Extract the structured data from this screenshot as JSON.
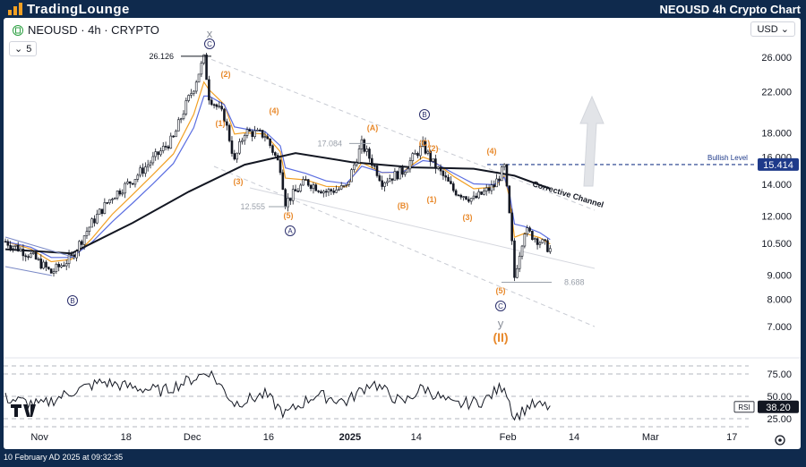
{
  "header": {
    "brand": "TradingLounge",
    "title": "NEOUSD 4h Crypto Chart"
  },
  "toolbar": {
    "symbol": "NEOUSD · 4h · CRYPTO",
    "interval_value": "5",
    "currency": "USD"
  },
  "footer": {
    "timestamp": "10 February AD 2025 at 09:32:35"
  },
  "colors": {
    "background": "#0f2a4d",
    "candle": "#131722",
    "sma_long": "#131722",
    "ema_blue": "#5b6ee1",
    "ema_orange": "#f2a024",
    "wave_orange": "#e8892b",
    "wave_navy": "#2a2e6b",
    "bullish_level": "#1e3a8a",
    "rsi": "#131722"
  },
  "chart_data": [
    {
      "type": "line",
      "title": "NEOUSD · 4h · CRYPTO",
      "log_scale": true,
      "grid": false,
      "x_ticks": [
        "Nov",
        "18",
        "Dec",
        "16",
        "2025",
        "14",
        "Feb",
        "14",
        "Mar",
        "17"
      ],
      "y_ticks": [
        26,
        22,
        18,
        16,
        14,
        12,
        10.5,
        9,
        8,
        7
      ],
      "y_tick_labels": [
        "26.000",
        "22.000",
        "18.000",
        "16.000",
        "14.000",
        "12.000",
        "10.500",
        "9.000",
        "8.000",
        "7.000"
      ],
      "ylim": [
        6.2,
        29
      ],
      "series": [
        {
          "name": "",
          "x": [
            "Oct 26",
            "Oct 31",
            "Nov 4",
            "Nov 8",
            "Nov 12",
            "Nov 16",
            "Nov 20",
            "Nov 24",
            "Nov 28",
            "Dec 2",
            "Dec 4",
            "Dec 5",
            "Dec 8",
            "Dec 10",
            "Dec 12",
            "Dec 16",
            "Dec 19",
            "Dec 20",
            "Dec 24",
            "Dec 28",
            "Jan 1",
            "Jan 4",
            "Jan 8",
            "Jan 12",
            "Jan 16",
            "Jan 18",
            "Jan 22",
            "Jan 26",
            "Jan 30",
            "Feb 1",
            "Feb 2",
            "Feb 3",
            "Feb 5",
            "Feb 8",
            "Feb 10"
          ],
          "values": [
            10.6,
            9.9,
            9.1,
            9.8,
            11.6,
            13.2,
            14.3,
            15.8,
            17.5,
            22.5,
            25.8,
            21.5,
            19.4,
            15.6,
            18.1,
            17.8,
            15.2,
            12.8,
            14.2,
            13.5,
            13.8,
            17.0,
            14.2,
            14.9,
            16.9,
            15.5,
            13.6,
            13.0,
            13.9,
            15.2,
            12.0,
            8.9,
            11.2,
            10.6,
            10.2
          ]
        },
        {
          "name": "",
          "x": [
            "Oct 26",
            "Nov 8",
            "Nov 20",
            "Dec 1",
            "Dec 12",
            "Dec 22",
            "Jan 2",
            "Jan 14",
            "Jan 26",
            "Feb 3",
            "Feb 10"
          ],
          "values": [
            10.2,
            10.0,
            11.6,
            13.5,
            15.4,
            16.3,
            15.6,
            15.2,
            15.1,
            14.6,
            13.7
          ]
        }
      ],
      "annotations": {
        "price_labels": [
          "26.126",
          "17.084",
          "12.555",
          "8.688"
        ],
        "wave_labels_orange": [
          "(2)",
          "(1)",
          "(3)",
          "(4)",
          "(5)",
          "(A)",
          "(B)",
          "(C)",
          "(2)",
          "(1)",
          "(3)",
          "(4)",
          "(5)",
          "(II)"
        ],
        "wave_labels_navy": [
          "x",
          "C",
          "A",
          "B",
          "B",
          "C",
          "y"
        ],
        "bullish_level_label": "Bullish Level",
        "bullish_level_value": "15.414",
        "channel_label": "Corrective Channel"
      }
    },
    {
      "type": "line",
      "title": "RSI",
      "ylim": [
        15,
        85
      ],
      "y_ticks": [
        75,
        50,
        25
      ],
      "y_tick_labels": [
        "75.00",
        "50.00",
        "25.00"
      ],
      "current_value": "38.20",
      "series": [
        {
          "name": "RSI",
          "x": [
            "Oct 26",
            "Nov 2",
            "Nov 8",
            "Nov 14",
            "Nov 20",
            "Nov 26",
            "Dec 2",
            "Dec 5",
            "Dec 10",
            "Dec 16",
            "Dec 20",
            "Dec 26",
            "Jan 1",
            "Jan 6",
            "Jan 12",
            "Jan 16",
            "Jan 22",
            "Jan 28",
            "Feb 1",
            "Feb 3",
            "Feb 6",
            "Feb 10"
          ],
          "values": [
            48,
            40,
            55,
            66,
            60,
            56,
            70,
            78,
            42,
            52,
            30,
            52,
            44,
            66,
            42,
            60,
            40,
            45,
            63,
            26,
            40,
            38.2
          ]
        }
      ]
    }
  ]
}
